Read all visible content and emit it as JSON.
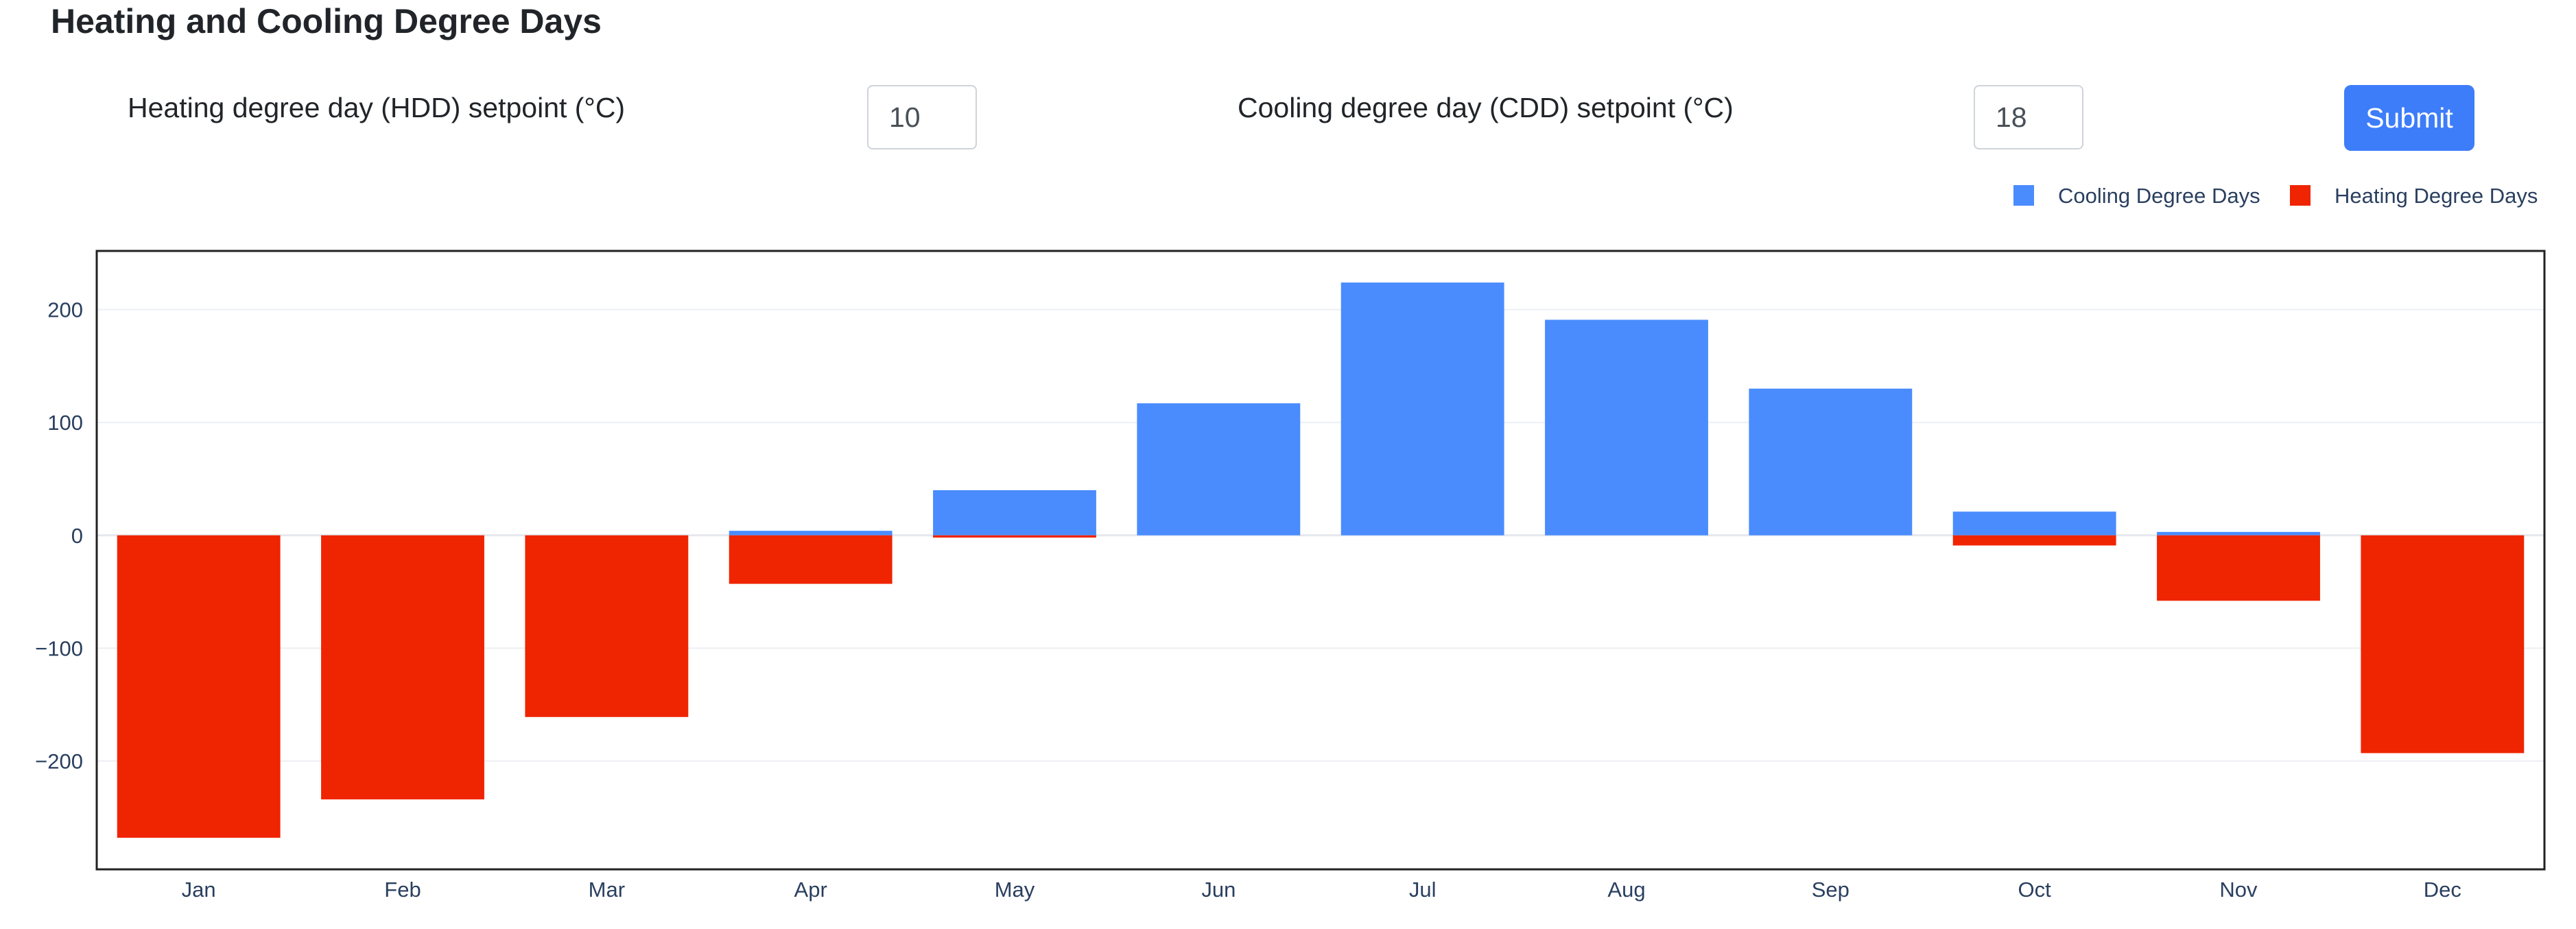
{
  "page": {
    "title": "Heating and Cooling Degree Days"
  },
  "form": {
    "hdd_label": "Heating degree day (HDD) setpoint (°C)",
    "hdd_value": "10",
    "cdd_label": "Cooling degree day (CDD) setpoint (°C)",
    "cdd_value": "18",
    "submit_label": "Submit"
  },
  "chart_data": {
    "type": "bar",
    "barmode": "relative",
    "categories": [
      "Jan",
      "Feb",
      "Mar",
      "Apr",
      "May",
      "Jun",
      "Jul",
      "Aug",
      "Sep",
      "Oct",
      "Nov",
      "Dec"
    ],
    "series": [
      {
        "name": "Cooling Degree Days",
        "color": "#4a8cfe",
        "values": [
          0,
          0,
          0,
          4,
          40,
          117,
          224,
          191,
          130,
          21,
          3,
          0
        ]
      },
      {
        "name": "Heating Degree Days",
        "color": "#ef2400",
        "values": [
          -268,
          -234,
          -161,
          -43,
          -2,
          0,
          0,
          0,
          0,
          -9,
          -58,
          -193
        ]
      }
    ],
    "yticks": [
      200,
      100,
      0,
      -100,
      -200
    ],
    "ytick_labels": [
      "200",
      "100",
      "0",
      "−100",
      "−200"
    ],
    "ylim": [
      -296,
      252
    ],
    "grid": true,
    "legend_position": "top-right",
    "title": "",
    "xlabel": "",
    "ylabel": ""
  }
}
